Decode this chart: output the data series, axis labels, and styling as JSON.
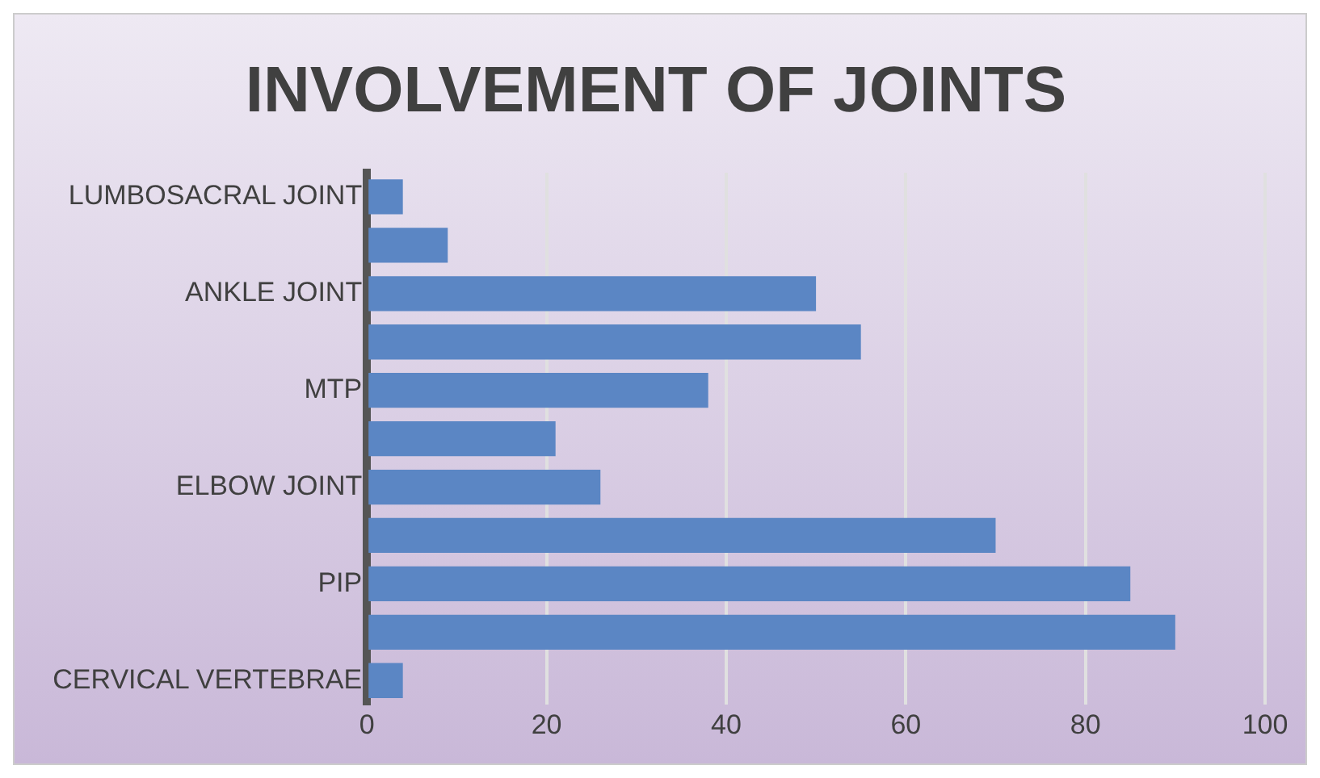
{
  "chart_data": {
    "type": "bar",
    "orientation": "horizontal",
    "title": "INVOLVEMENT OF JOINTS",
    "categories": [
      "LUMBOSACRAL JOINT",
      null,
      "ANKLE JOINT",
      null,
      "MTP",
      null,
      "ELBOW JOINT",
      null,
      "PIP",
      null,
      "CERVICAL VERTEBRAE"
    ],
    "values": [
      4,
      9,
      50,
      55,
      38,
      21,
      26,
      70,
      85,
      90,
      4
    ],
    "color": "#5b86c4",
    "xlim": [
      0,
      100
    ],
    "xticks": [
      0,
      20,
      40,
      60,
      80,
      100
    ],
    "grid": "x",
    "legend": false
  }
}
